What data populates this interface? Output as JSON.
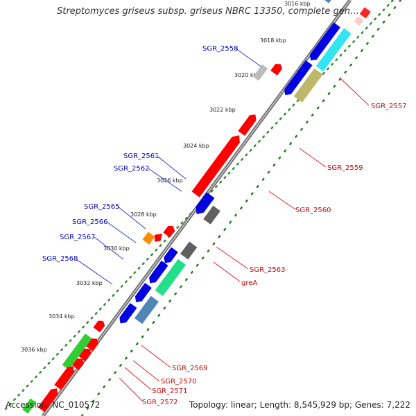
{
  "title": "Streptomyces griseus subsp. griseus NBRC 13350, complete gen…",
  "footer": {
    "accession": "Accession: NC_010572",
    "topology": "Topology: linear; Length: 8,545,929 bp; Genes: 7,222"
  },
  "colors": {
    "backbone": "#808080",
    "upper_ticks": "#2e8b2e",
    "lower_ticks": "#1e7a1e",
    "strand_minus": "#ff0000",
    "strand_plus": "#0000ee",
    "label_minus": "#cc0000",
    "label_plus": "#0000bb"
  },
  "scale_labels": [
    "3016 kbp",
    "3018 kbp",
    "3020 kbp",
    "3022 kbp",
    "3024 kbp",
    "3026 kbp",
    "3028 kbp",
    "3030 kbp",
    "3032 kbp",
    "3034 kbp",
    "3036 kbp"
  ],
  "labels_left": [
    "SGR_2558",
    "SGR_2561",
    "SGR_2562",
    "SGR_2565",
    "SGR_2566",
    "SGR_2567",
    "SGR_2568"
  ],
  "labels_right": [
    "SGR_2557",
    "SGR_2559",
    "SGR_2560",
    "SGR_2563",
    "greA",
    "SGR_2569",
    "SGR_2570",
    "SGR_2571",
    "SGR_2572"
  ]
}
